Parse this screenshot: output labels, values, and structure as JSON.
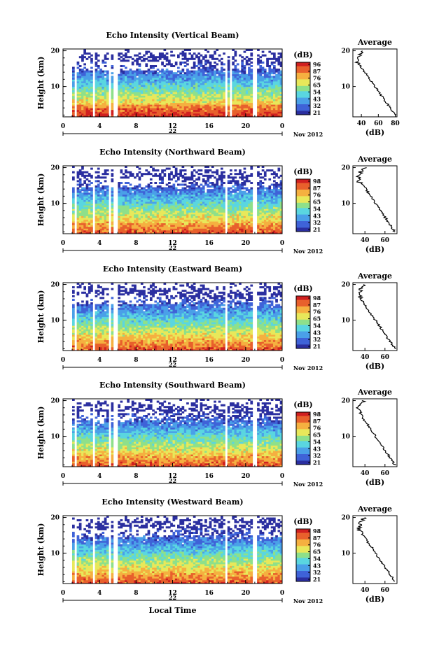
{
  "figure": {
    "y_axis_label": "Height (km)",
    "date_label": "Nov 2012",
    "day_label": "22",
    "x_axis_label": "Local Time",
    "colorbar_unit": "(dB)",
    "average_title": "Average",
    "average_xlabel": "(dB)"
  },
  "colors": {
    "scale": [
      "#2b2fa0",
      "#3f63d8",
      "#4aa0e8",
      "#5ad6e0",
      "#8ee08a",
      "#e8e85a",
      "#f5b040",
      "#e8602c",
      "#d02020"
    ]
  },
  "chart_data": [
    {
      "type": "heatmap",
      "title": "Echo Intensity (Vertical Beam)",
      "xlabel": "",
      "ylabel": "Height (km)",
      "x_ticks": [
        "0",
        "4",
        "8",
        "12",
        "16",
        "20",
        "0"
      ],
      "y_ticks": [
        "20",
        "10"
      ],
      "xlim": [
        0,
        24
      ],
      "ylim": [
        1.5,
        20.5
      ],
      "colorbar_ticks": [
        "96",
        "87",
        "76",
        "65",
        "54",
        "43",
        "32",
        "21"
      ],
      "average": {
        "x_ticks": [
          "40",
          "60",
          "80"
        ],
        "xlim": [
          30,
          82
        ],
        "ylim": [
          1.5,
          20.5
        ]
      }
    },
    {
      "type": "heatmap",
      "title": "Echo Intensity (Northward Beam)",
      "xlabel": "",
      "ylabel": "Height (km)",
      "x_ticks": [
        "0",
        "4",
        "8",
        "12",
        "16",
        "20",
        "0"
      ],
      "y_ticks": [
        "20",
        "10"
      ],
      "xlim": [
        0,
        24
      ],
      "ylim": [
        1.5,
        20.5
      ],
      "colorbar_ticks": [
        "98",
        "87",
        "76",
        "65",
        "54",
        "43",
        "32",
        "21"
      ],
      "average": {
        "x_ticks": [
          "40",
          "60"
        ],
        "xlim": [
          28,
          72
        ],
        "ylim": [
          1.5,
          20.5
        ]
      }
    },
    {
      "type": "heatmap",
      "title": "Echo Intensity (Eastward Beam)",
      "xlabel": "",
      "ylabel": "Height (km)",
      "x_ticks": [
        "0",
        "4",
        "8",
        "12",
        "16",
        "20",
        "0"
      ],
      "y_ticks": [
        "20",
        "10"
      ],
      "xlim": [
        0,
        24
      ],
      "ylim": [
        1.5,
        20.5
      ],
      "colorbar_ticks": [
        "98",
        "87",
        "76",
        "65",
        "54",
        "43",
        "32",
        "21"
      ],
      "average": {
        "x_ticks": [
          "40",
          "60"
        ],
        "xlim": [
          28,
          72
        ],
        "ylim": [
          1.5,
          20.5
        ]
      }
    },
    {
      "type": "heatmap",
      "title": "Echo Intensity (Southward Beam)",
      "xlabel": "",
      "ylabel": "Height (km)",
      "x_ticks": [
        "0",
        "4",
        "8",
        "12",
        "16",
        "20",
        "0"
      ],
      "y_ticks": [
        "20",
        "10"
      ],
      "xlim": [
        0,
        24
      ],
      "ylim": [
        1.5,
        20.5
      ],
      "colorbar_ticks": [
        "98",
        "87",
        "76",
        "65",
        "54",
        "43",
        "32",
        "21"
      ],
      "average": {
        "x_ticks": [
          "40",
          "60"
        ],
        "xlim": [
          28,
          72
        ],
        "ylim": [
          1.5,
          20.5
        ]
      }
    },
    {
      "type": "heatmap",
      "title": "Echo Intensity (Westward Beam)",
      "xlabel": "Local Time",
      "ylabel": "Height (km)",
      "x_ticks": [
        "0",
        "4",
        "8",
        "12",
        "16",
        "20",
        "0"
      ],
      "y_ticks": [
        "20",
        "10"
      ],
      "xlim": [
        0,
        24
      ],
      "ylim": [
        1.5,
        20.5
      ],
      "colorbar_ticks": [
        "98",
        "87",
        "76",
        "65",
        "54",
        "43",
        "32",
        "21"
      ],
      "average": {
        "x_ticks": [
          "40",
          "60"
        ],
        "xlim": [
          28,
          72
        ],
        "ylim": [
          1.5,
          20.5
        ]
      }
    }
  ]
}
